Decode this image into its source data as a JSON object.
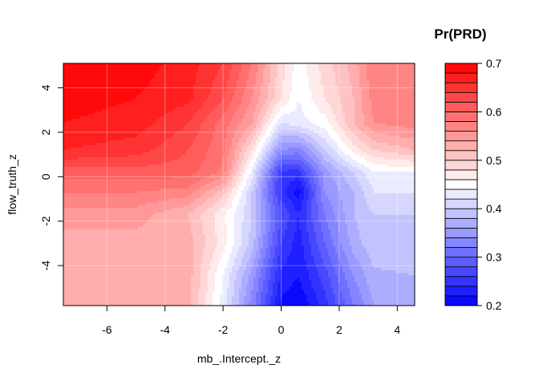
{
  "chart_data": {
    "type": "heatmap",
    "subtype": "filled-contour",
    "title": "",
    "xlabel": "mb_.Intercept._z",
    "ylabel": "flow_truth_z",
    "xlim": [
      -7.5,
      4.6
    ],
    "ylim": [
      -5.8,
      5.1
    ],
    "x_ticks": [
      -6,
      -4,
      -2,
      0,
      2,
      4
    ],
    "x_tick_labels": [
      "-6",
      "-4",
      "-2",
      "0",
      "2",
      "4"
    ],
    "y_ticks": [
      -4,
      -2,
      0,
      2,
      4
    ],
    "y_tick_labels": [
      "-4",
      "-2",
      "0",
      "2",
      "4"
    ],
    "grid": true,
    "x": [
      -7.5,
      -5.0,
      -3.2,
      -2.0,
      -1.0,
      0.0,
      0.6,
      1.5,
      2.5,
      3.2,
      4.6
    ],
    "y": [
      -5.8,
      -4.5,
      -3.0,
      -1.7,
      -0.7,
      0.2,
      1.2,
      2.4,
      3.5,
      5.1
    ],
    "z": [
      [
        0.52,
        0.52,
        0.53,
        0.43,
        0.33,
        0.215,
        0.2,
        0.25,
        0.32,
        0.36,
        0.37
      ],
      [
        0.52,
        0.52,
        0.53,
        0.44,
        0.35,
        0.235,
        0.22,
        0.27,
        0.34,
        0.375,
        0.38
      ],
      [
        0.53,
        0.53,
        0.53,
        0.47,
        0.39,
        0.26,
        0.23,
        0.3,
        0.37,
        0.395,
        0.39
      ],
      [
        0.55,
        0.55,
        0.52,
        0.465,
        0.4,
        0.28,
        0.24,
        0.32,
        0.38,
        0.4,
        0.4
      ],
      [
        0.58,
        0.58,
        0.57,
        0.51,
        0.4,
        0.25,
        0.21,
        0.34,
        0.38,
        0.42,
        0.42
      ],
      [
        0.61,
        0.61,
        0.61,
        0.575,
        0.43,
        0.255,
        0.25,
        0.35,
        0.4,
        0.44,
        0.44
      ],
      [
        0.66,
        0.65,
        0.62,
        0.585,
        0.48,
        0.34,
        0.33,
        0.4,
        0.47,
        0.5,
        0.52
      ],
      [
        0.68,
        0.67,
        0.64,
        0.59,
        0.54,
        0.42,
        0.43,
        0.45,
        0.52,
        0.56,
        0.57
      ],
      [
        0.69,
        0.68,
        0.665,
        0.62,
        0.56,
        0.48,
        0.44,
        0.48,
        0.52,
        0.57,
        0.575
      ],
      [
        0.7,
        0.69,
        0.67,
        0.64,
        0.58,
        0.49,
        0.45,
        0.49,
        0.53,
        0.58,
        0.58
      ]
    ],
    "levels": [
      0.2,
      0.22,
      0.24,
      0.26,
      0.28,
      0.3,
      0.32,
      0.34,
      0.36,
      0.38,
      0.4,
      0.42,
      0.44,
      0.46,
      0.48,
      0.5,
      0.52,
      0.54,
      0.56,
      0.58,
      0.6,
      0.62,
      0.64,
      0.66,
      0.68,
      0.7
    ],
    "colorscale": {
      "low": "#0000ff",
      "mid": "#ffffff",
      "high": "#ff0000",
      "mid_value": 0.45
    },
    "legend": {
      "title": "Pr(PRD)",
      "placement": "right",
      "range": [
        0.2,
        0.7
      ],
      "ticks": [
        0.2,
        0.3,
        0.4,
        0.5,
        0.6,
        0.7
      ],
      "tick_labels": [
        "0.2",
        "0.3",
        "0.4",
        "0.5",
        "0.6",
        "0.7"
      ]
    }
  }
}
